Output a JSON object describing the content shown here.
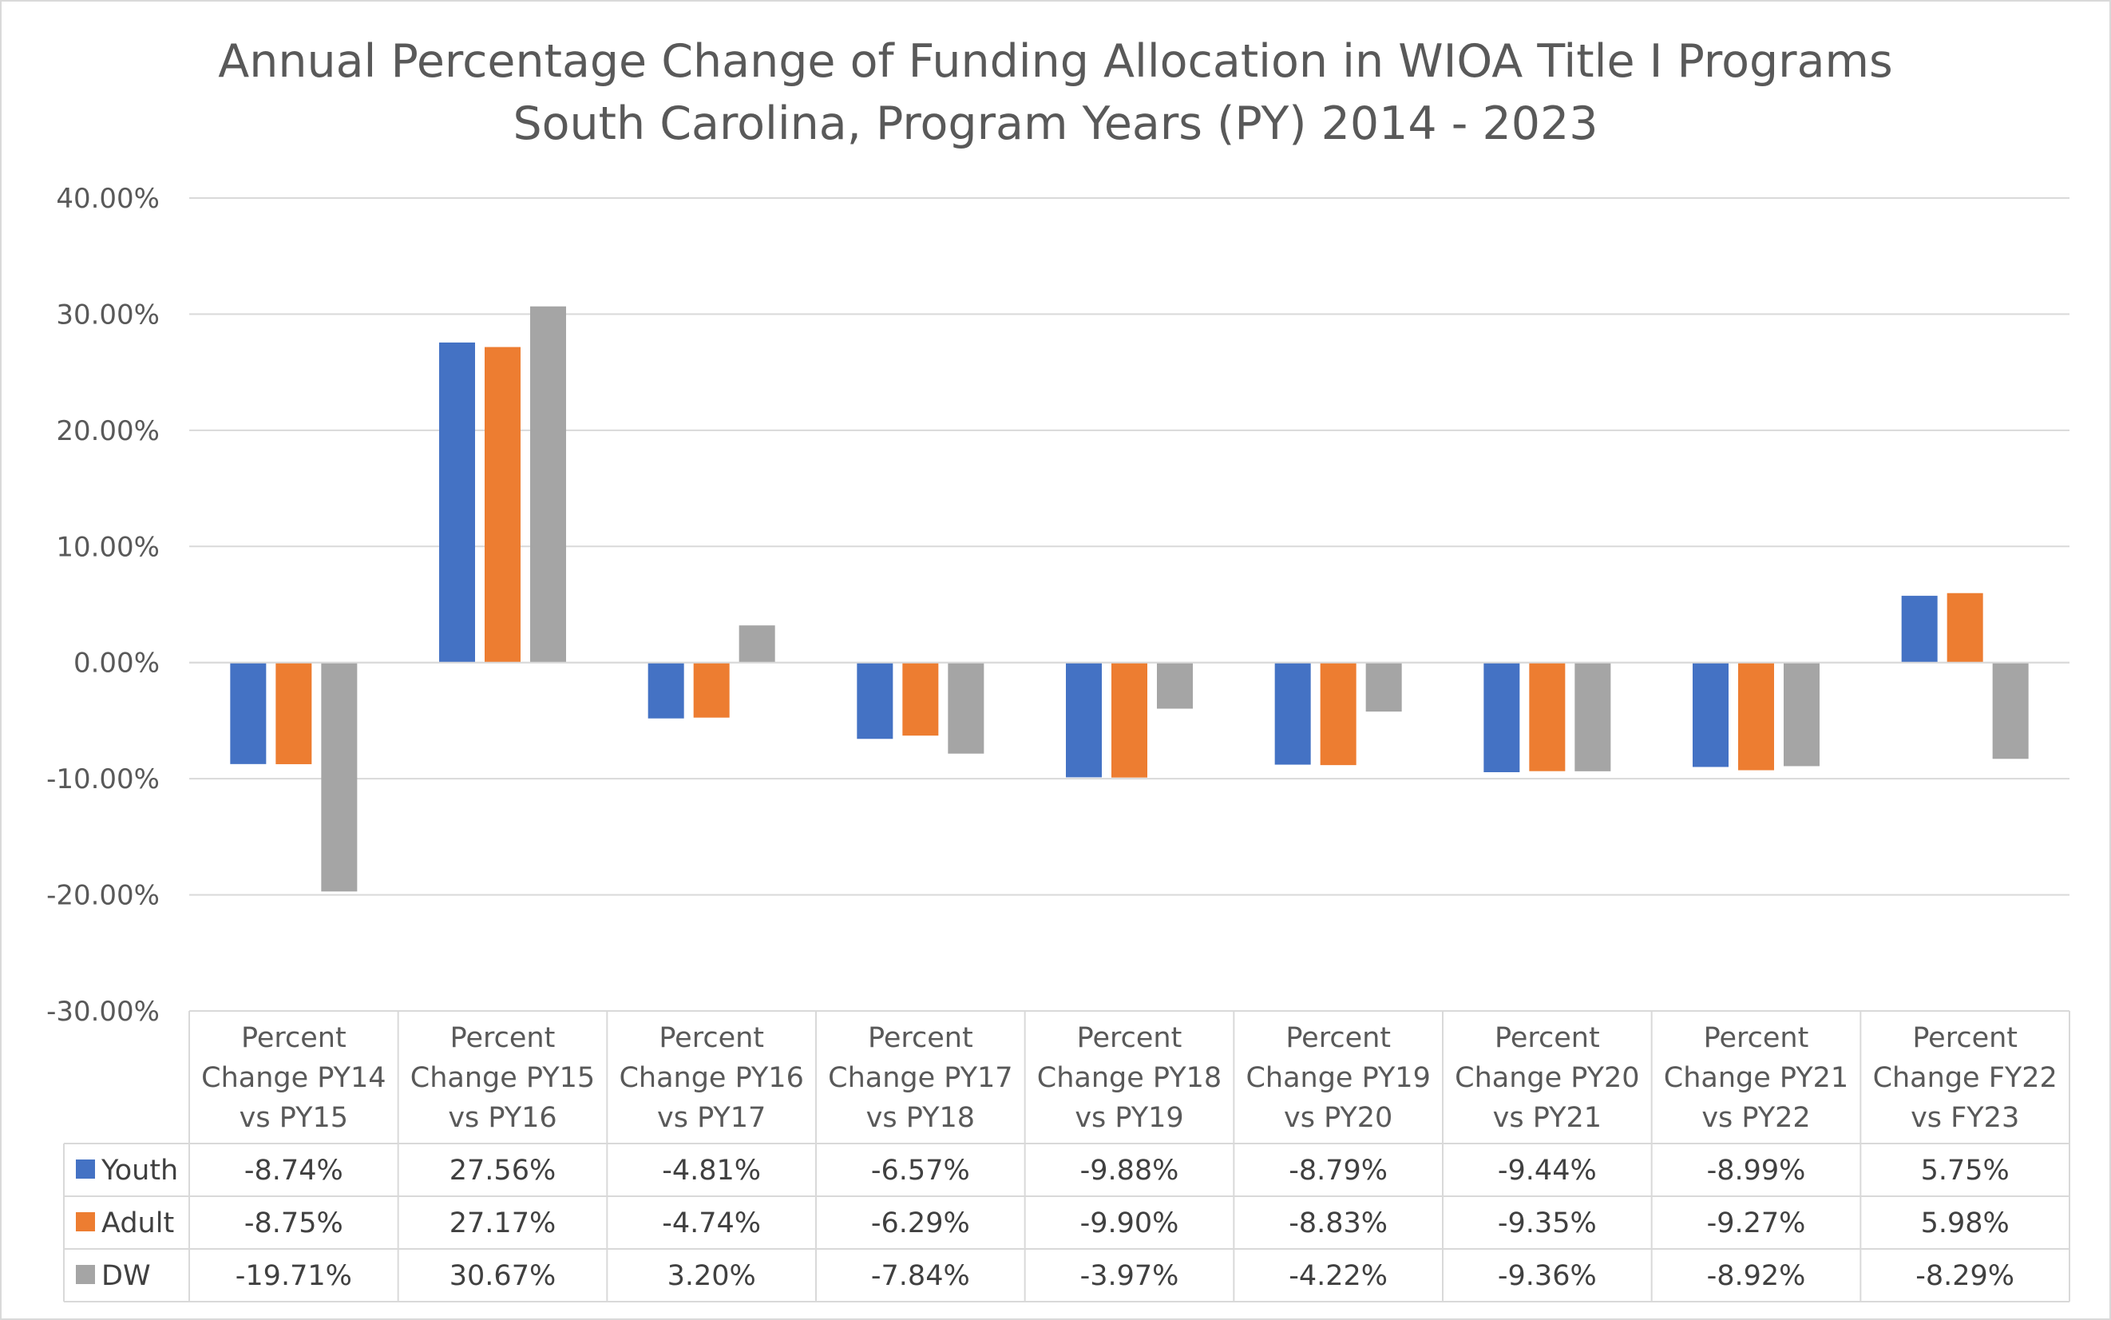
{
  "chart_data": {
    "type": "bar",
    "title": "Annual Percentage Change of Funding Allocation in WIOA Title I Programs",
    "subtitle": "South Carolina, Program Years (PY) 2014 - 2023",
    "categories": [
      [
        "Percent",
        "Change PY14",
        "vs PY15"
      ],
      [
        "Percent",
        "Change PY15",
        "vs PY16"
      ],
      [
        "Percent",
        "Change PY16",
        "vs PY17"
      ],
      [
        "Percent",
        "Change PY17",
        "vs PY18"
      ],
      [
        "Percent",
        "Change PY18",
        "vs PY19"
      ],
      [
        "Percent",
        "Change PY19",
        "vs PY20"
      ],
      [
        "Percent",
        "Change PY20",
        "vs PY21"
      ],
      [
        "Percent",
        "Change PY21",
        "vs PY22"
      ],
      [
        "Percent",
        "Change FY22",
        "vs FY23"
      ]
    ],
    "series": [
      {
        "name": "Youth",
        "color": "#4472c4",
        "values": [
          -8.74,
          27.56,
          -4.81,
          -6.57,
          -9.88,
          -8.79,
          -9.44,
          -8.99,
          5.75
        ],
        "labels": [
          "-8.74%",
          "27.56%",
          "-4.81%",
          "-6.57%",
          "-9.88%",
          "-8.79%",
          "-9.44%",
          "-8.99%",
          "5.75%"
        ]
      },
      {
        "name": "Adult",
        "color": "#ed7d31",
        "values": [
          -8.75,
          27.17,
          -4.74,
          -6.29,
          -9.9,
          -8.83,
          -9.35,
          -9.27,
          5.98
        ],
        "labels": [
          "-8.75%",
          "27.17%",
          "-4.74%",
          "-6.29%",
          "-9.90%",
          "-8.83%",
          "-9.35%",
          "-9.27%",
          "5.98%"
        ]
      },
      {
        "name": "DW",
        "color": "#a5a5a5",
        "values": [
          -19.71,
          30.67,
          3.2,
          -7.84,
          -3.97,
          -4.22,
          -9.36,
          -8.92,
          -8.29
        ],
        "labels": [
          "-19.71%",
          "30.67%",
          "3.20%",
          "-7.84%",
          "-3.97%",
          "-4.22%",
          "-9.36%",
          "-8.92%",
          "-8.29%"
        ]
      }
    ],
    "ylim": [
      -30,
      40
    ],
    "yticks": [
      40,
      30,
      20,
      10,
      0,
      -10,
      -20,
      -30
    ],
    "ytick_labels": [
      "40.00%",
      "30.00%",
      "20.00%",
      "10.00%",
      "0.00%",
      "-10.00%",
      "-20.00%",
      "-30.00%"
    ],
    "grid": true,
    "legend": "data-table",
    "gridline_color": "#d9d9d9",
    "axis_text_color": "#595959"
  }
}
